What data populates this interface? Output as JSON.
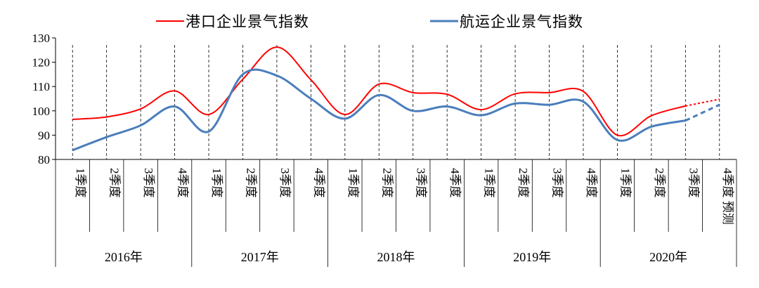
{
  "chart_data": {
    "type": "line",
    "legend": {
      "placement": "top-center",
      "entries": [
        {
          "label": "港口企业景气指数",
          "color": "#ff0000"
        },
        {
          "label": "航运企业景气指数",
          "color": "#4a7ebb"
        }
      ]
    },
    "ylim": [
      80,
      130
    ],
    "yticks": [
      80,
      90,
      100,
      110,
      120,
      130
    ],
    "quarters": [
      "1季度",
      "2季度",
      "3季度",
      "4季度",
      "1季度",
      "2季度",
      "3季度",
      "4季度",
      "1季度",
      "2季度",
      "3季度",
      "4季度",
      "1季度",
      "2季度",
      "3季度",
      "4季度",
      "1季度",
      "2季度",
      "3季度",
      "4季度 预测"
    ],
    "years": [
      "2016年",
      "2017年",
      "2018年",
      "2019年",
      "2020年"
    ],
    "series": [
      {
        "name": "港口企业景气指数",
        "color": "#ff0000",
        "values": [
          96.5,
          97.5,
          100.8,
          108.2,
          98.5,
          113.0,
          126.2,
          112.8,
          98.5,
          111.0,
          107.5,
          106.8,
          100.5,
          107.0,
          107.5,
          108.0,
          90.0,
          98.0,
          102.0,
          104.8
        ],
        "forecast_from_index": 18
      },
      {
        "name": "航运企业景气指数",
        "color": "#4a7ebb",
        "values": [
          83.8,
          89.2,
          94.0,
          101.8,
          91.5,
          115.0,
          114.5,
          105.0,
          96.8,
          106.5,
          100.0,
          101.8,
          98.2,
          103.0,
          102.5,
          103.8,
          88.0,
          93.5,
          96.0,
          102.5
        ],
        "forecast_from_index": 18
      }
    ],
    "grid": "vertical dashed lines at each quarter"
  }
}
